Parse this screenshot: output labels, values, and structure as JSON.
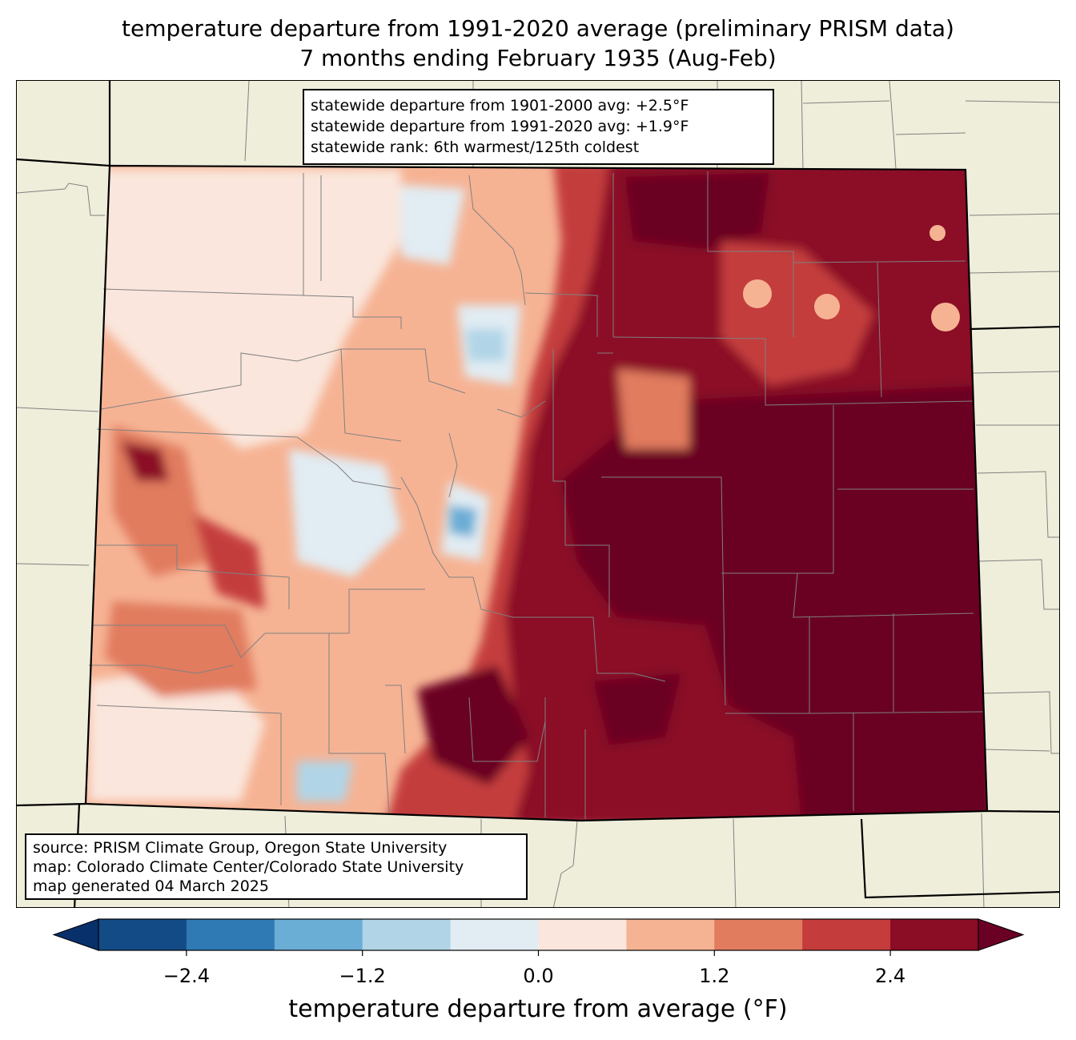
{
  "title": {
    "line1": "temperature departure from 1991-2020 average (preliminary PRISM data)",
    "line2": "7 months ending February 1935 (Aug-Feb)"
  },
  "stats": {
    "line1": "statewide departure from 1901-2000 avg: +2.5°F",
    "line2": "statewide departure from 1991-2020 avg: +1.9°F",
    "line3": "statewide rank: 6th warmest/125th coldest"
  },
  "source": {
    "line1": "source: PRISM Climate Group, Oregon State University",
    "line2": "map: Colorado Climate Center/Colorado State University",
    "line3": "map generated 04 March 2025"
  },
  "colorbar": {
    "label": "temperature departure from average (°F)",
    "ticks": [
      "−2.4",
      "−1.2",
      "0.0",
      "1.2",
      "2.4"
    ],
    "tick_values": [
      -2.4,
      -1.2,
      0.0,
      1.2,
      2.4
    ],
    "range": [
      -3.0,
      3.0
    ],
    "step": 0.6,
    "colors": {
      "under": "#08306b",
      "bins": [
        "#134b87",
        "#2f79b5",
        "#6aadd5",
        "#b1d5e7",
        "#e1ecf3",
        "#fae6dc",
        "#f6b394",
        "#e17c5f",
        "#c43c3c",
        "#8b0c25"
      ],
      "over": "#6a0024"
    }
  },
  "map": {
    "colors": {
      "background": "#efeedb",
      "state_border": "#000000",
      "county_line": "#808080"
    }
  }
}
